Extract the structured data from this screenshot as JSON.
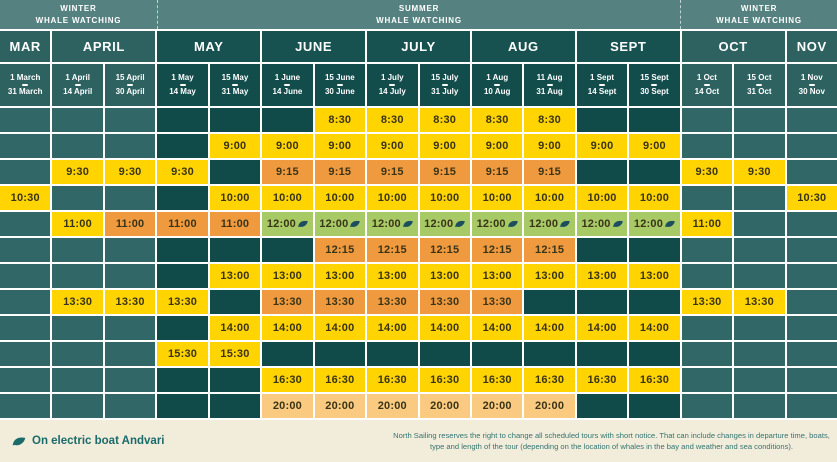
{
  "banner": {
    "sections": [
      {
        "line1": "WINTER",
        "line2": "WHALE WATCHING",
        "span": 3
      },
      {
        "line1": "SUMMER",
        "line2": "WHALE WATCHING",
        "span": 10
      },
      {
        "line1": "WINTER",
        "line2": "WHALE WATCHING",
        "span": 3
      }
    ]
  },
  "months": [
    {
      "name": "MAR",
      "span": 1,
      "season": "winter"
    },
    {
      "name": "APRIL",
      "span": 2,
      "season": "winter"
    },
    {
      "name": "MAY",
      "span": 2,
      "season": "summer"
    },
    {
      "name": "JUNE",
      "span": 2,
      "season": "summer"
    },
    {
      "name": "JULY",
      "span": 2,
      "season": "summer"
    },
    {
      "name": "AUG",
      "span": 2,
      "season": "summer"
    },
    {
      "name": "SEPT",
      "span": 2,
      "season": "summer"
    },
    {
      "name": "OCT",
      "span": 2,
      "season": "winter"
    },
    {
      "name": "NOV",
      "span": 1,
      "season": "winter"
    }
  ],
  "date_columns": [
    {
      "from": "1 March",
      "to": "31 March",
      "season": "winter"
    },
    {
      "from": "1 April",
      "to": "14 April",
      "season": "winter"
    },
    {
      "from": "15 April",
      "to": "30 April",
      "season": "winter"
    },
    {
      "from": "1 May",
      "to": "14 May",
      "season": "summer"
    },
    {
      "from": "15 May",
      "to": "31 May",
      "season": "summer"
    },
    {
      "from": "1 June",
      "to": "14 June",
      "season": "summer"
    },
    {
      "from": "15 June",
      "to": "30 June",
      "season": "summer"
    },
    {
      "from": "1 July",
      "to": "14 July",
      "season": "summer"
    },
    {
      "from": "15 July",
      "to": "31 July",
      "season": "summer"
    },
    {
      "from": "1 Aug",
      "to": "10 Aug",
      "season": "summer"
    },
    {
      "from": "11 Aug",
      "to": "31 Aug",
      "season": "summer"
    },
    {
      "from": "1 Sept",
      "to": "14 Sept",
      "season": "summer"
    },
    {
      "from": "15 Sept",
      "to": "30 Sept",
      "season": "summer"
    },
    {
      "from": "1 Oct",
      "to": "14 Oct",
      "season": "winter"
    },
    {
      "from": "15 Oct",
      "to": "31 Oct",
      "season": "winter"
    },
    {
      "from": "1 Nov",
      "to": "30 Nov",
      "season": "winter"
    }
  ],
  "schedule_rows": [
    [
      null,
      null,
      null,
      null,
      null,
      null,
      {
        "t": "8:30",
        "c": "yellow"
      },
      {
        "t": "8:30",
        "c": "yellow"
      },
      {
        "t": "8:30",
        "c": "yellow"
      },
      {
        "t": "8:30",
        "c": "yellow"
      },
      {
        "t": "8:30",
        "c": "yellow"
      },
      null,
      null,
      null,
      null,
      null
    ],
    [
      null,
      null,
      null,
      null,
      {
        "t": "9:00",
        "c": "yellow"
      },
      {
        "t": "9:00",
        "c": "yellow"
      },
      {
        "t": "9:00",
        "c": "yellow"
      },
      {
        "t": "9:00",
        "c": "yellow"
      },
      {
        "t": "9:00",
        "c": "yellow"
      },
      {
        "t": "9:00",
        "c": "yellow"
      },
      {
        "t": "9:00",
        "c": "yellow"
      },
      {
        "t": "9:00",
        "c": "yellow"
      },
      {
        "t": "9:00",
        "c": "yellow"
      },
      null,
      null,
      null
    ],
    [
      null,
      {
        "t": "9:30",
        "c": "yellow"
      },
      {
        "t": "9:30",
        "c": "yellow"
      },
      {
        "t": "9:30",
        "c": "yellow"
      },
      null,
      {
        "t": "9:15",
        "c": "orange"
      },
      {
        "t": "9:15",
        "c": "orange"
      },
      {
        "t": "9:15",
        "c": "orange"
      },
      {
        "t": "9:15",
        "c": "orange"
      },
      {
        "t": "9:15",
        "c": "orange"
      },
      {
        "t": "9:15",
        "c": "orange"
      },
      null,
      null,
      {
        "t": "9:30",
        "c": "yellow"
      },
      {
        "t": "9:30",
        "c": "yellow"
      },
      null
    ],
    [
      {
        "t": "10:30",
        "c": "yellow"
      },
      null,
      null,
      null,
      {
        "t": "10:00",
        "c": "yellow"
      },
      {
        "t": "10:00",
        "c": "yellow"
      },
      {
        "t": "10:00",
        "c": "yellow"
      },
      {
        "t": "10:00",
        "c": "yellow"
      },
      {
        "t": "10:00",
        "c": "yellow"
      },
      {
        "t": "10:00",
        "c": "yellow"
      },
      {
        "t": "10:00",
        "c": "yellow"
      },
      {
        "t": "10:00",
        "c": "yellow"
      },
      {
        "t": "10:00",
        "c": "yellow"
      },
      null,
      null,
      {
        "t": "10:30",
        "c": "yellow"
      }
    ],
    [
      null,
      {
        "t": "11:00",
        "c": "yellow"
      },
      {
        "t": "11:00",
        "c": "orange"
      },
      {
        "t": "11:00",
        "c": "orange"
      },
      {
        "t": "11:00",
        "c": "orange"
      },
      {
        "t": "12:00",
        "c": "green",
        "leaf": true
      },
      {
        "t": "12:00",
        "c": "green",
        "leaf": true
      },
      {
        "t": "12:00",
        "c": "green",
        "leaf": true
      },
      {
        "t": "12:00",
        "c": "green",
        "leaf": true
      },
      {
        "t": "12:00",
        "c": "green",
        "leaf": true
      },
      {
        "t": "12:00",
        "c": "green",
        "leaf": true
      },
      {
        "t": "12:00",
        "c": "green",
        "leaf": true
      },
      {
        "t": "12:00",
        "c": "green",
        "leaf": true
      },
      {
        "t": "11:00",
        "c": "yellow"
      },
      null,
      null
    ],
    [
      null,
      null,
      null,
      null,
      null,
      null,
      {
        "t": "12:15",
        "c": "orange"
      },
      {
        "t": "12:15",
        "c": "orange"
      },
      {
        "t": "12:15",
        "c": "orange"
      },
      {
        "t": "12:15",
        "c": "orange"
      },
      {
        "t": "12:15",
        "c": "orange"
      },
      null,
      null,
      null,
      null,
      null
    ],
    [
      null,
      null,
      null,
      null,
      {
        "t": "13:00",
        "c": "yellow"
      },
      {
        "t": "13:00",
        "c": "yellow"
      },
      {
        "t": "13:00",
        "c": "yellow"
      },
      {
        "t": "13:00",
        "c": "yellow"
      },
      {
        "t": "13:00",
        "c": "yellow"
      },
      {
        "t": "13:00",
        "c": "yellow"
      },
      {
        "t": "13:00",
        "c": "yellow"
      },
      {
        "t": "13:00",
        "c": "yellow"
      },
      {
        "t": "13:00",
        "c": "yellow"
      },
      null,
      null,
      null
    ],
    [
      null,
      {
        "t": "13:30",
        "c": "yellow"
      },
      {
        "t": "13:30",
        "c": "yellow"
      },
      {
        "t": "13:30",
        "c": "yellow"
      },
      null,
      {
        "t": "13:30",
        "c": "orange"
      },
      {
        "t": "13:30",
        "c": "orange"
      },
      {
        "t": "13:30",
        "c": "orange"
      },
      {
        "t": "13:30",
        "c": "orange"
      },
      {
        "t": "13:30",
        "c": "orange"
      },
      null,
      null,
      null,
      {
        "t": "13:30",
        "c": "yellow"
      },
      {
        "t": "13:30",
        "c": "yellow"
      },
      null
    ],
    [
      null,
      null,
      null,
      null,
      {
        "t": "14:00",
        "c": "yellow"
      },
      {
        "t": "14:00",
        "c": "yellow"
      },
      {
        "t": "14:00",
        "c": "yellow"
      },
      {
        "t": "14:00",
        "c": "yellow"
      },
      {
        "t": "14:00",
        "c": "yellow"
      },
      {
        "t": "14:00",
        "c": "yellow"
      },
      {
        "t": "14:00",
        "c": "yellow"
      },
      {
        "t": "14:00",
        "c": "yellow"
      },
      {
        "t": "14:00",
        "c": "yellow"
      },
      null,
      null,
      null
    ],
    [
      null,
      null,
      null,
      {
        "t": "15:30",
        "c": "yellow"
      },
      {
        "t": "15:30",
        "c": "yellow"
      },
      null,
      null,
      null,
      null,
      null,
      null,
      null,
      null,
      null,
      null,
      null
    ],
    [
      null,
      null,
      null,
      null,
      null,
      {
        "t": "16:30",
        "c": "yellow"
      },
      {
        "t": "16:30",
        "c": "yellow"
      },
      {
        "t": "16:30",
        "c": "yellow"
      },
      {
        "t": "16:30",
        "c": "yellow"
      },
      {
        "t": "16:30",
        "c": "yellow"
      },
      {
        "t": "16:30",
        "c": "yellow"
      },
      {
        "t": "16:30",
        "c": "yellow"
      },
      {
        "t": "16:30",
        "c": "yellow"
      },
      null,
      null,
      null
    ],
    [
      null,
      null,
      null,
      null,
      null,
      {
        "t": "20:00",
        "c": "peach"
      },
      {
        "t": "20:00",
        "c": "peach"
      },
      {
        "t": "20:00",
        "c": "peach"
      },
      {
        "t": "20:00",
        "c": "peach"
      },
      {
        "t": "20:00",
        "c": "peach"
      },
      {
        "t": "20:00",
        "c": "peach"
      },
      null,
      null,
      null,
      null,
      null
    ]
  ],
  "legend": {
    "electric_boat": "On electric boat Andvari"
  },
  "disclaimer": "North Sailing reserves the right to change all scheduled tours with short notice. That can include changes in departure time, boats, type and length of the tour (depending on the location of whales in the bay and weather and sea conditions).",
  "colors": {
    "yellow": "#FFD400",
    "orange": "#F09A40",
    "peach": "#F9CA80",
    "green_electric": "#A7C966",
    "banner_teal": "#558280",
    "winter_teal": "#2D6261",
    "summer_teal": "#124D4C",
    "footer_cream": "#F2EDDB"
  }
}
